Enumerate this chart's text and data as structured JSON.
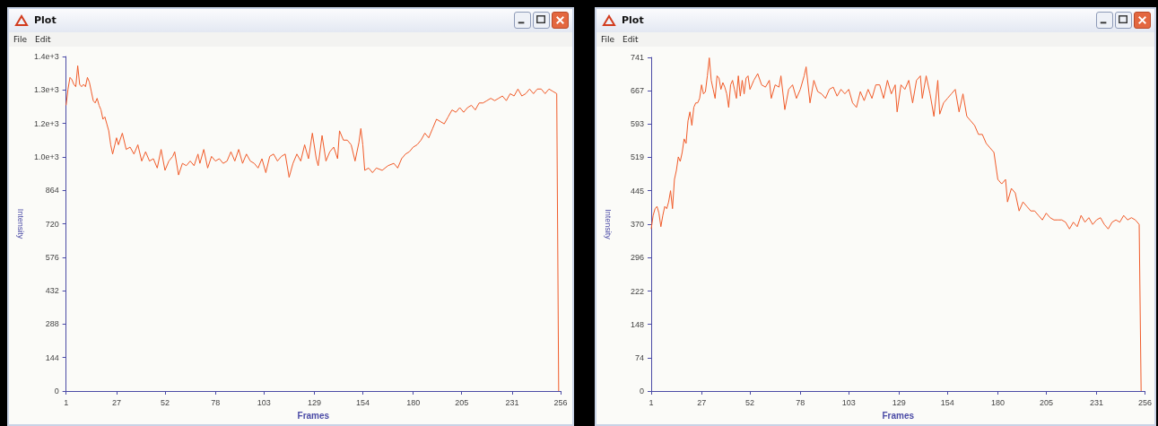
{
  "chart_data": [
    {
      "type": "line",
      "title": "Plot",
      "annotations": [
        "File",
        "Edit"
      ],
      "xlabel": "Frames",
      "ylabel": "Intensity",
      "color": "#f05a28",
      "xlim": [
        1,
        256
      ],
      "xticks": [
        1,
        27,
        52,
        78,
        103,
        129,
        154,
        180,
        205,
        231,
        256
      ],
      "ylim": [
        0,
        1440
      ],
      "yticks": [
        0,
        144,
        288,
        432,
        576,
        720,
        864,
        {
          "value": 1008,
          "label": "1.0e+3"
        },
        {
          "value": 1152,
          "label": "1.2e+3"
        },
        {
          "value": 1296,
          "label": "1.3e+3"
        },
        {
          "value": 1440,
          "label": "1.4e+3"
        }
      ],
      "x": [
        1,
        2,
        3,
        4,
        5,
        6,
        7,
        8,
        9,
        10,
        11,
        12,
        13,
        14,
        15,
        16,
        17,
        18,
        19,
        20,
        21,
        22,
        23,
        24,
        25,
        27,
        28,
        30,
        32,
        34,
        36,
        38,
        40,
        42,
        44,
        46,
        48,
        50,
        52,
        54,
        56,
        57,
        59,
        61,
        63,
        65,
        67,
        69,
        70,
        72,
        74,
        76,
        78,
        80,
        82,
        84,
        86,
        88,
        90,
        92,
        94,
        96,
        98,
        100,
        102,
        104,
        106,
        108,
        110,
        112,
        114,
        116,
        118,
        120,
        122,
        124,
        126,
        128,
        130,
        131,
        133,
        135,
        137,
        139,
        141,
        142,
        144,
        146,
        148,
        150,
        152,
        153,
        154,
        155,
        157,
        159,
        161,
        164,
        167,
        170,
        172,
        174,
        176,
        178,
        180,
        182,
        184,
        186,
        188,
        190,
        192,
        194,
        196,
        198,
        200,
        202,
        204,
        206,
        208,
        210,
        212,
        214,
        216,
        218,
        220,
        222,
        224,
        226,
        228,
        230,
        232,
        234,
        236,
        238,
        240,
        242,
        244,
        246,
        248,
        250,
        252,
        254,
        255
      ],
      "values": [
        1230,
        1300,
        1350,
        1340,
        1320,
        1310,
        1400,
        1320,
        1310,
        1320,
        1310,
        1350,
        1330,
        1290,
        1250,
        1240,
        1260,
        1230,
        1210,
        1170,
        1180,
        1150,
        1120,
        1060,
        1020,
        1090,
        1060,
        1110,
        1040,
        1050,
        1020,
        1060,
        990,
        1030,
        990,
        1000,
        960,
        1040,
        950,
        990,
        1010,
        1030,
        930,
        980,
        970,
        990,
        970,
        1020,
        980,
        1040,
        960,
        1010,
        990,
        1000,
        980,
        990,
        1030,
        990,
        1040,
        980,
        1020,
        990,
        980,
        960,
        1000,
        940,
        1010,
        1020,
        990,
        1010,
        1020,
        920,
        980,
        1020,
        990,
        1060,
        1000,
        1110,
        1000,
        970,
        1100,
        990,
        1030,
        1050,
        1000,
        1120,
        1080,
        1080,
        1060,
        990,
        1070,
        1130,
        1060,
        950,
        960,
        940,
        960,
        950,
        970,
        980,
        960,
        1000,
        1020,
        1030,
        1050,
        1060,
        1080,
        1110,
        1090,
        1130,
        1170,
        1160,
        1150,
        1180,
        1210,
        1200,
        1220,
        1200,
        1220,
        1230,
        1210,
        1240,
        1240,
        1250,
        1260,
        1250,
        1260,
        1270,
        1250,
        1280,
        1270,
        1300,
        1270,
        1280,
        1300,
        1280,
        1300,
        1300,
        1280,
        1300,
        1290,
        1280,
        0
      ]
    },
    {
      "type": "line",
      "title": "Plot",
      "annotations": [
        "File",
        "Edit"
      ],
      "xlabel": "Frames",
      "ylabel": "Intensity",
      "color": "#f05a28",
      "xlim": [
        1,
        256
      ],
      "xticks": [
        1,
        27,
        52,
        78,
        103,
        129,
        154,
        180,
        205,
        231,
        256
      ],
      "ylim": [
        0,
        741
      ],
      "yticks": [
        0,
        74,
        148,
        222,
        296,
        370,
        445,
        519,
        593,
        667,
        741
      ],
      "x": [
        1,
        2,
        3,
        4,
        5,
        6,
        7,
        8,
        9,
        10,
        11,
        12,
        13,
        14,
        15,
        16,
        17,
        18,
        19,
        20,
        21,
        22,
        23,
        24,
        25,
        26,
        27,
        28,
        29,
        30,
        31,
        32,
        33,
        34,
        35,
        36,
        37,
        38,
        39,
        40,
        41,
        42,
        43,
        44,
        45,
        46,
        47,
        48,
        49,
        50,
        51,
        52,
        54,
        56,
        58,
        60,
        62,
        63,
        65,
        67,
        68,
        70,
        72,
        74,
        76,
        78,
        80,
        81,
        83,
        85,
        87,
        89,
        91,
        93,
        95,
        97,
        99,
        101,
        103,
        105,
        107,
        109,
        111,
        113,
        115,
        117,
        119,
        121,
        123,
        125,
        127,
        128,
        130,
        132,
        134,
        136,
        138,
        140,
        141,
        143,
        145,
        147,
        149,
        150,
        152,
        154,
        156,
        158,
        160,
        162,
        164,
        166,
        168,
        170,
        172,
        174,
        176,
        178,
        180,
        182,
        184,
        185,
        187,
        189,
        191,
        193,
        195,
        197,
        199,
        201,
        203,
        205,
        207,
        209,
        211,
        213,
        215,
        217,
        219,
        221,
        223,
        225,
        227,
        229,
        231,
        233,
        235,
        237,
        239,
        241,
        243,
        245,
        247,
        249,
        251,
        253,
        254
      ],
      "values": [
        360,
        390,
        405,
        410,
        395,
        365,
        390,
        410,
        405,
        420,
        445,
        405,
        470,
        490,
        520,
        510,
        530,
        560,
        550,
        600,
        620,
        590,
        630,
        640,
        640,
        650,
        680,
        660,
        665,
        700,
        740,
        690,
        670,
        650,
        700,
        695,
        670,
        685,
        675,
        660,
        630,
        680,
        690,
        670,
        650,
        700,
        655,
        690,
        660,
        695,
        700,
        670,
        690,
        705,
        680,
        675,
        690,
        650,
        680,
        675,
        700,
        625,
        670,
        680,
        650,
        670,
        700,
        720,
        640,
        690,
        665,
        660,
        650,
        670,
        675,
        655,
        670,
        660,
        670,
        640,
        630,
        665,
        645,
        670,
        650,
        680,
        680,
        650,
        690,
        660,
        680,
        620,
        680,
        670,
        690,
        640,
        690,
        700,
        650,
        700,
        660,
        610,
        690,
        615,
        640,
        650,
        660,
        670,
        620,
        660,
        610,
        600,
        590,
        570,
        570,
        550,
        540,
        530,
        470,
        460,
        470,
        420,
        450,
        440,
        400,
        420,
        410,
        400,
        400,
        390,
        380,
        395,
        385,
        380,
        380,
        380,
        375,
        360,
        375,
        365,
        390,
        375,
        385,
        370,
        380,
        385,
        370,
        360,
        375,
        380,
        375,
        390,
        380,
        385,
        380,
        370,
        0
      ]
    }
  ]
}
